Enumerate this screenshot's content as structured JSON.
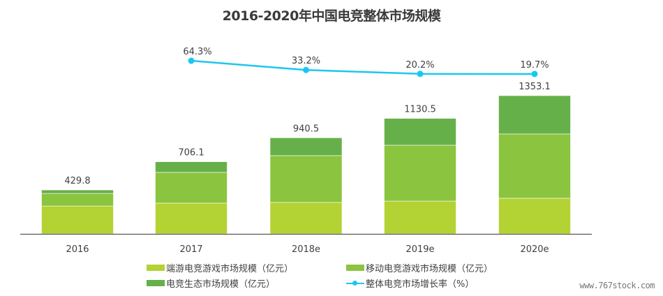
{
  "chart_data": {
    "type": "bar",
    "stacked": true,
    "title": "2016-2020年中国电竞整体市场规模",
    "categories": [
      "2016",
      "2017",
      "2018e",
      "2019e",
      "2020e"
    ],
    "totals": [
      429.8,
      706.1,
      940.5,
      1130.5,
      1353.1
    ],
    "total_labels": [
      "429.8",
      "706.1",
      "940.5",
      "1130.5",
      "1353.1"
    ],
    "series": [
      {
        "name": "端游电竞游戏市场规模（亿元）",
        "color": "#b3d234",
        "values": [
          273.0,
          301.0,
          308.0,
          321.0,
          349.0
        ]
      },
      {
        "name": "移动电竞游戏市场规模（亿元）",
        "color": "#8bc43f",
        "values": [
          123.0,
          301.0,
          458.0,
          547.0,
          629.0
        ]
      },
      {
        "name": "电竞生态市场规模（亿元）",
        "color": "#66b04a",
        "values": [
          33.8,
          104.1,
          174.5,
          262.5,
          375.1
        ]
      }
    ],
    "line_series": {
      "name": "整体电竞市场增长率（%）",
      "color": "#1cc7ee",
      "categories": [
        "2017",
        "2018e",
        "2019e",
        "2020e"
      ],
      "values": [
        64.3,
        33.2,
        20.2,
        19.7
      ],
      "labels": [
        "64.3%",
        "33.2%",
        "20.2%",
        "19.7%"
      ]
    },
    "xlabel": "",
    "ylabel": "",
    "ylim": [
      0,
      1353.1
    ],
    "grid": false,
    "legend_position": "bottom"
  },
  "legend": {
    "items": [
      "端游电竞游戏市场规模（亿元）",
      "移动电竞游戏市场规模（亿元）",
      "电竞生态市场规模（亿元）",
      "整体电竞市场增长率（%）"
    ]
  },
  "watermark": "www.767stock.com"
}
